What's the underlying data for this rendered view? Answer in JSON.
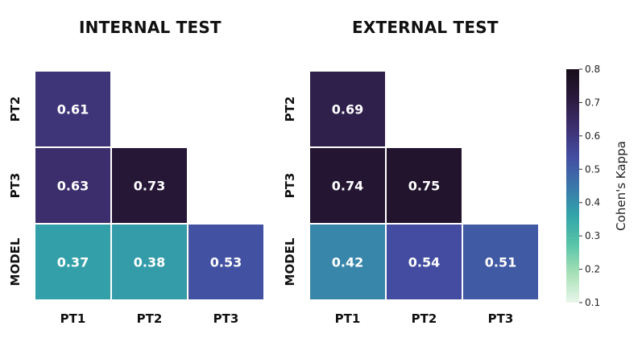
{
  "chart_data": [
    {
      "type": "heatmap",
      "title": "INTERNAL TEST",
      "row_labels": [
        "PT2",
        "PT3",
        "MODEL"
      ],
      "col_labels": [
        "PT1",
        "PT2",
        "PT3"
      ],
      "values": [
        [
          0.61,
          null,
          null
        ],
        [
          0.63,
          0.73,
          null
        ],
        [
          0.37,
          0.38,
          0.53
        ]
      ],
      "cell_labels": [
        [
          "0.61",
          "",
          ""
        ],
        [
          "0.63",
          "0.73",
          ""
        ],
        [
          "0.37",
          "0.38",
          "0.53"
        ]
      ]
    },
    {
      "type": "heatmap",
      "title": "EXTERNAL TEST",
      "row_labels": [
        "PT2",
        "PT3",
        "MODEL"
      ],
      "col_labels": [
        "PT1",
        "PT2",
        "PT3"
      ],
      "values": [
        [
          0.69,
          null,
          null
        ],
        [
          0.74,
          0.75,
          null
        ],
        [
          0.42,
          0.54,
          0.51
        ]
      ],
      "cell_labels": [
        [
          "0.69",
          "",
          ""
        ],
        [
          "0.74",
          "0.75",
          ""
        ],
        [
          "0.42",
          "0.54",
          "0.51"
        ]
      ]
    }
  ],
  "colorbar": {
    "label": "Cohen's Kappa",
    "range": [
      0.1,
      0.8
    ],
    "ticks": [
      0.8,
      0.7,
      0.6,
      0.5,
      0.4,
      0.3,
      0.2,
      0.1
    ],
    "tick_labels": [
      "0.8",
      "0.7",
      "0.6",
      "0.5",
      "0.4",
      "0.3",
      "0.2",
      "0.1"
    ],
    "colormap": [
      "#e9f6ea",
      "#a7e1b7",
      "#57c4a8",
      "#32a4a9",
      "#3b76ab",
      "#434da1",
      "#3d2f6f",
      "#2a1a3e",
      "#170d17"
    ]
  }
}
